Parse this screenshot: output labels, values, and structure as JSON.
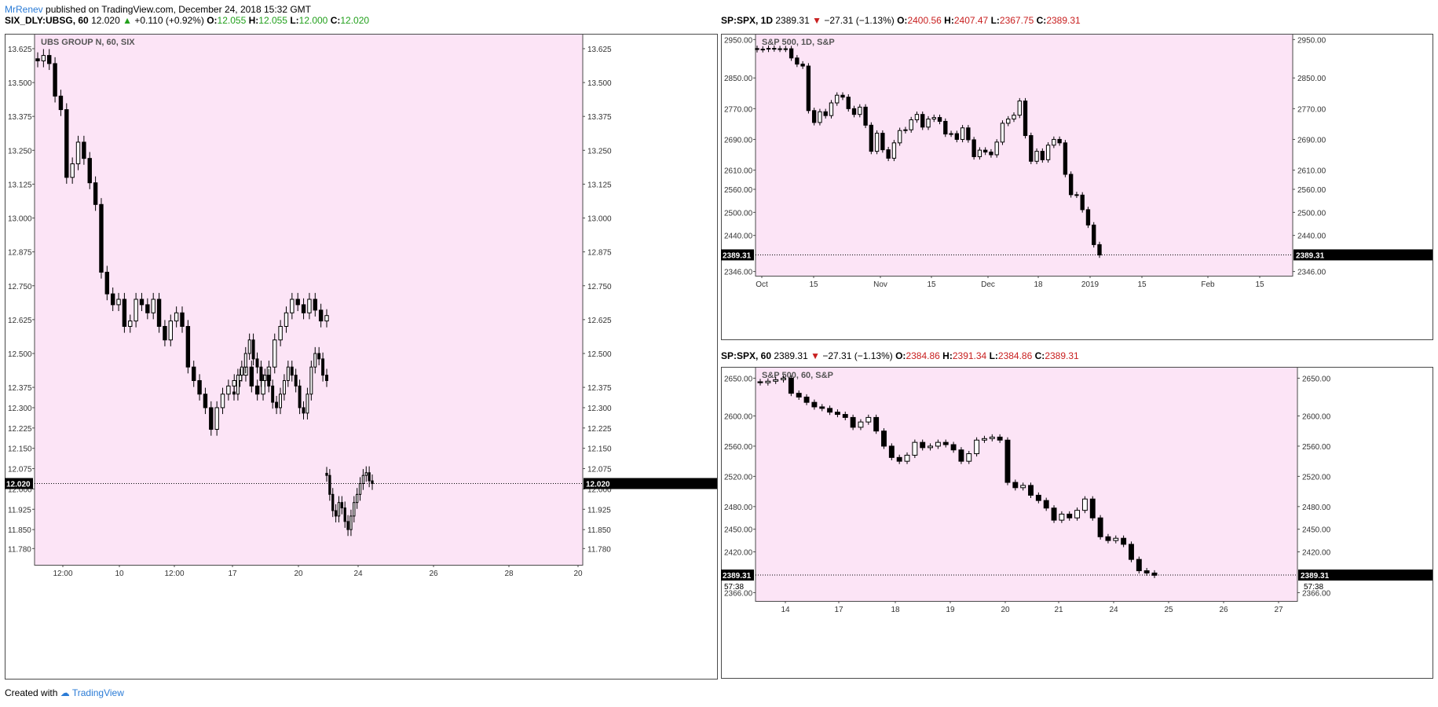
{
  "header": {
    "user": "MrRenev",
    "published": "published on TradingView.com, December 24, 2018 15:32 GMT"
  },
  "footer": {
    "created": "Created with",
    "brand": "TradingView"
  },
  "colors": {
    "panel_bg": "#fce4f6",
    "up": "#22a01c",
    "down": "#c81f1f"
  },
  "chart_data": [
    {
      "type": "candlestick",
      "symbol_line": {
        "symbol": "SIX_DLY:UBSG, 60",
        "price": "12.020",
        "change": "+0.110 (+0.92%)",
        "direction": "up",
        "o_label": "O:",
        "o": "12.055",
        "h_label": "H:",
        "h": "12.055",
        "l_label": "L:",
        "l": "12.000",
        "c_label": "C:",
        "c": "12.020"
      },
      "title": "UBS GROUP N, 60, SIX",
      "y_ticks": [
        "13.625",
        "13.500",
        "13.375",
        "13.250",
        "13.125",
        "13.000",
        "12.875",
        "12.750",
        "12.625",
        "12.500",
        "12.375",
        "12.300",
        "12.225",
        "12.150",
        "12.075",
        "12.000",
        "11.925",
        "11.850",
        "11.780"
      ],
      "x_ticks": [
        "12:00",
        "10",
        "12:00",
        "17",
        "20",
        "24",
        "26",
        "28",
        "20"
      ],
      "last_price": "12.020",
      "last_value": 12.02,
      "ylim": [
        11.72,
        13.68
      ],
      "segments": [
        {
          "values": [
            13.58,
            13.6,
            13.57,
            13.45,
            13.4,
            13.15,
            13.2,
            13.28,
            13.22,
            13.13,
            13.05,
            12.8,
            12.72,
            12.68,
            12.7,
            12.6,
            12.62,
            12.7,
            12.68,
            12.65,
            12.7,
            12.6,
            12.55,
            12.62,
            12.65,
            12.6,
            12.45,
            12.4,
            12.35,
            12.3,
            12.22,
            12.3,
            12.35,
            12.38,
            12.4,
            12.42,
            12.45,
            12.38,
            12.35,
            12.4,
            12.45,
            12.55,
            12.6,
            12.65,
            12.7,
            12.68,
            12.65,
            12.7,
            12.66,
            12.62,
            12.64
          ]
        },
        {
          "values": [
            12.35,
            12.42,
            12.45,
            12.5,
            12.55,
            12.48,
            12.45,
            12.4,
            12.42,
            12.38,
            12.32,
            12.3,
            12.35,
            12.4,
            12.45,
            12.42,
            12.38,
            12.3,
            12.28,
            12.35,
            12.45,
            12.5,
            12.48,
            12.42,
            12.4
          ]
        },
        {
          "values": [
            12.05,
            11.98,
            11.92,
            11.9,
            11.95,
            11.93,
            11.88,
            11.85,
            11.9,
            11.95,
            11.98,
            12.02,
            12.05,
            12.06,
            12.03,
            12.02
          ]
        }
      ]
    },
    {
      "type": "candlestick",
      "symbol_line": {
        "symbol": "SP:SPX, 1D",
        "price": "2389.31",
        "change": "−27.31 (−1.13%)",
        "direction": "down",
        "o_label": "O:",
        "o": "2400.56",
        "h_label": "H:",
        "h": "2407.47",
        "l_label": "L:",
        "l": "2367.75",
        "c_label": "C:",
        "c": "2389.31"
      },
      "title": "S&P 500, 1D, S&P",
      "y_ticks": [
        "2950.00",
        "2850.00",
        "2770.00",
        "2690.00",
        "2610.00",
        "2560.00",
        "2500.00",
        "2440.00",
        "2346.00"
      ],
      "x_ticks": [
        "Oct",
        "15",
        "Nov",
        "15",
        "Dec",
        "18",
        "2019",
        "15",
        "Feb",
        "15"
      ],
      "last_price": "2389.31",
      "last_value": 2389.31,
      "ylim": [
        2335,
        2965
      ],
      "segments": [
        {
          "values": [
            2924,
            2925,
            2927,
            2926,
            2925,
            2926,
            2902,
            2886,
            2881,
            2765,
            2734,
            2762,
            2752,
            2785,
            2805,
            2800,
            2770,
            2755,
            2774,
            2727,
            2659,
            2706,
            2663,
            2641,
            2681,
            2713,
            2715,
            2741,
            2755,
            2722,
            2743,
            2747,
            2737,
            2704,
            2705,
            2690,
            2720,
            2689,
            2645,
            2662,
            2657,
            2650,
            2683,
            2732,
            2743,
            2753,
            2790,
            2700,
            2633,
            2659,
            2637,
            2675,
            2690,
            2681,
            2599,
            2546,
            2545,
            2507,
            2467,
            2416,
            2389
          ]
        }
      ]
    },
    {
      "type": "candlestick",
      "symbol_line": {
        "symbol": "SP:SPX, 60",
        "price": "2389.31",
        "change": "−27.31 (−1.13%)",
        "direction": "down",
        "o_label": "O:",
        "o": "2384.86",
        "h_label": "H:",
        "h": "2391.34",
        "l_label": "L:",
        "l": "2384.86",
        "c_label": "C:",
        "c": "2389.31"
      },
      "title": "S&P 500, 60, S&P",
      "y_ticks": [
        "2650.00",
        "2600.00",
        "2560.00",
        "2520.00",
        "2480.00",
        "2450.00",
        "2420.00",
        "2366.00"
      ],
      "x_ticks": [
        "14",
        "17",
        "18",
        "19",
        "20",
        "21",
        "24",
        "25",
        "26",
        "27"
      ],
      "last_price": "2389.31",
      "countdown": "57:38",
      "last_value": 2389.31,
      "ylim": [
        2355,
        2665
      ],
      "segments": [
        {
          "values": [
            2644,
            2646,
            2648,
            2650,
            2630,
            2625,
            2618,
            2612,
            2610,
            2605,
            2602,
            2598,
            2585,
            2592,
            2598,
            2580,
            2560,
            2545,
            2540,
            2548,
            2565,
            2558,
            2560,
            2565,
            2562,
            2555,
            2540,
            2550,
            2568,
            2570,
            2572,
            2568,
            2512,
            2505,
            2508,
            2495,
            2488,
            2478,
            2462,
            2470,
            2465,
            2475,
            2490,
            2465,
            2440,
            2435,
            2438,
            2430,
            2410,
            2395,
            2392,
            2389
          ]
        }
      ]
    }
  ]
}
